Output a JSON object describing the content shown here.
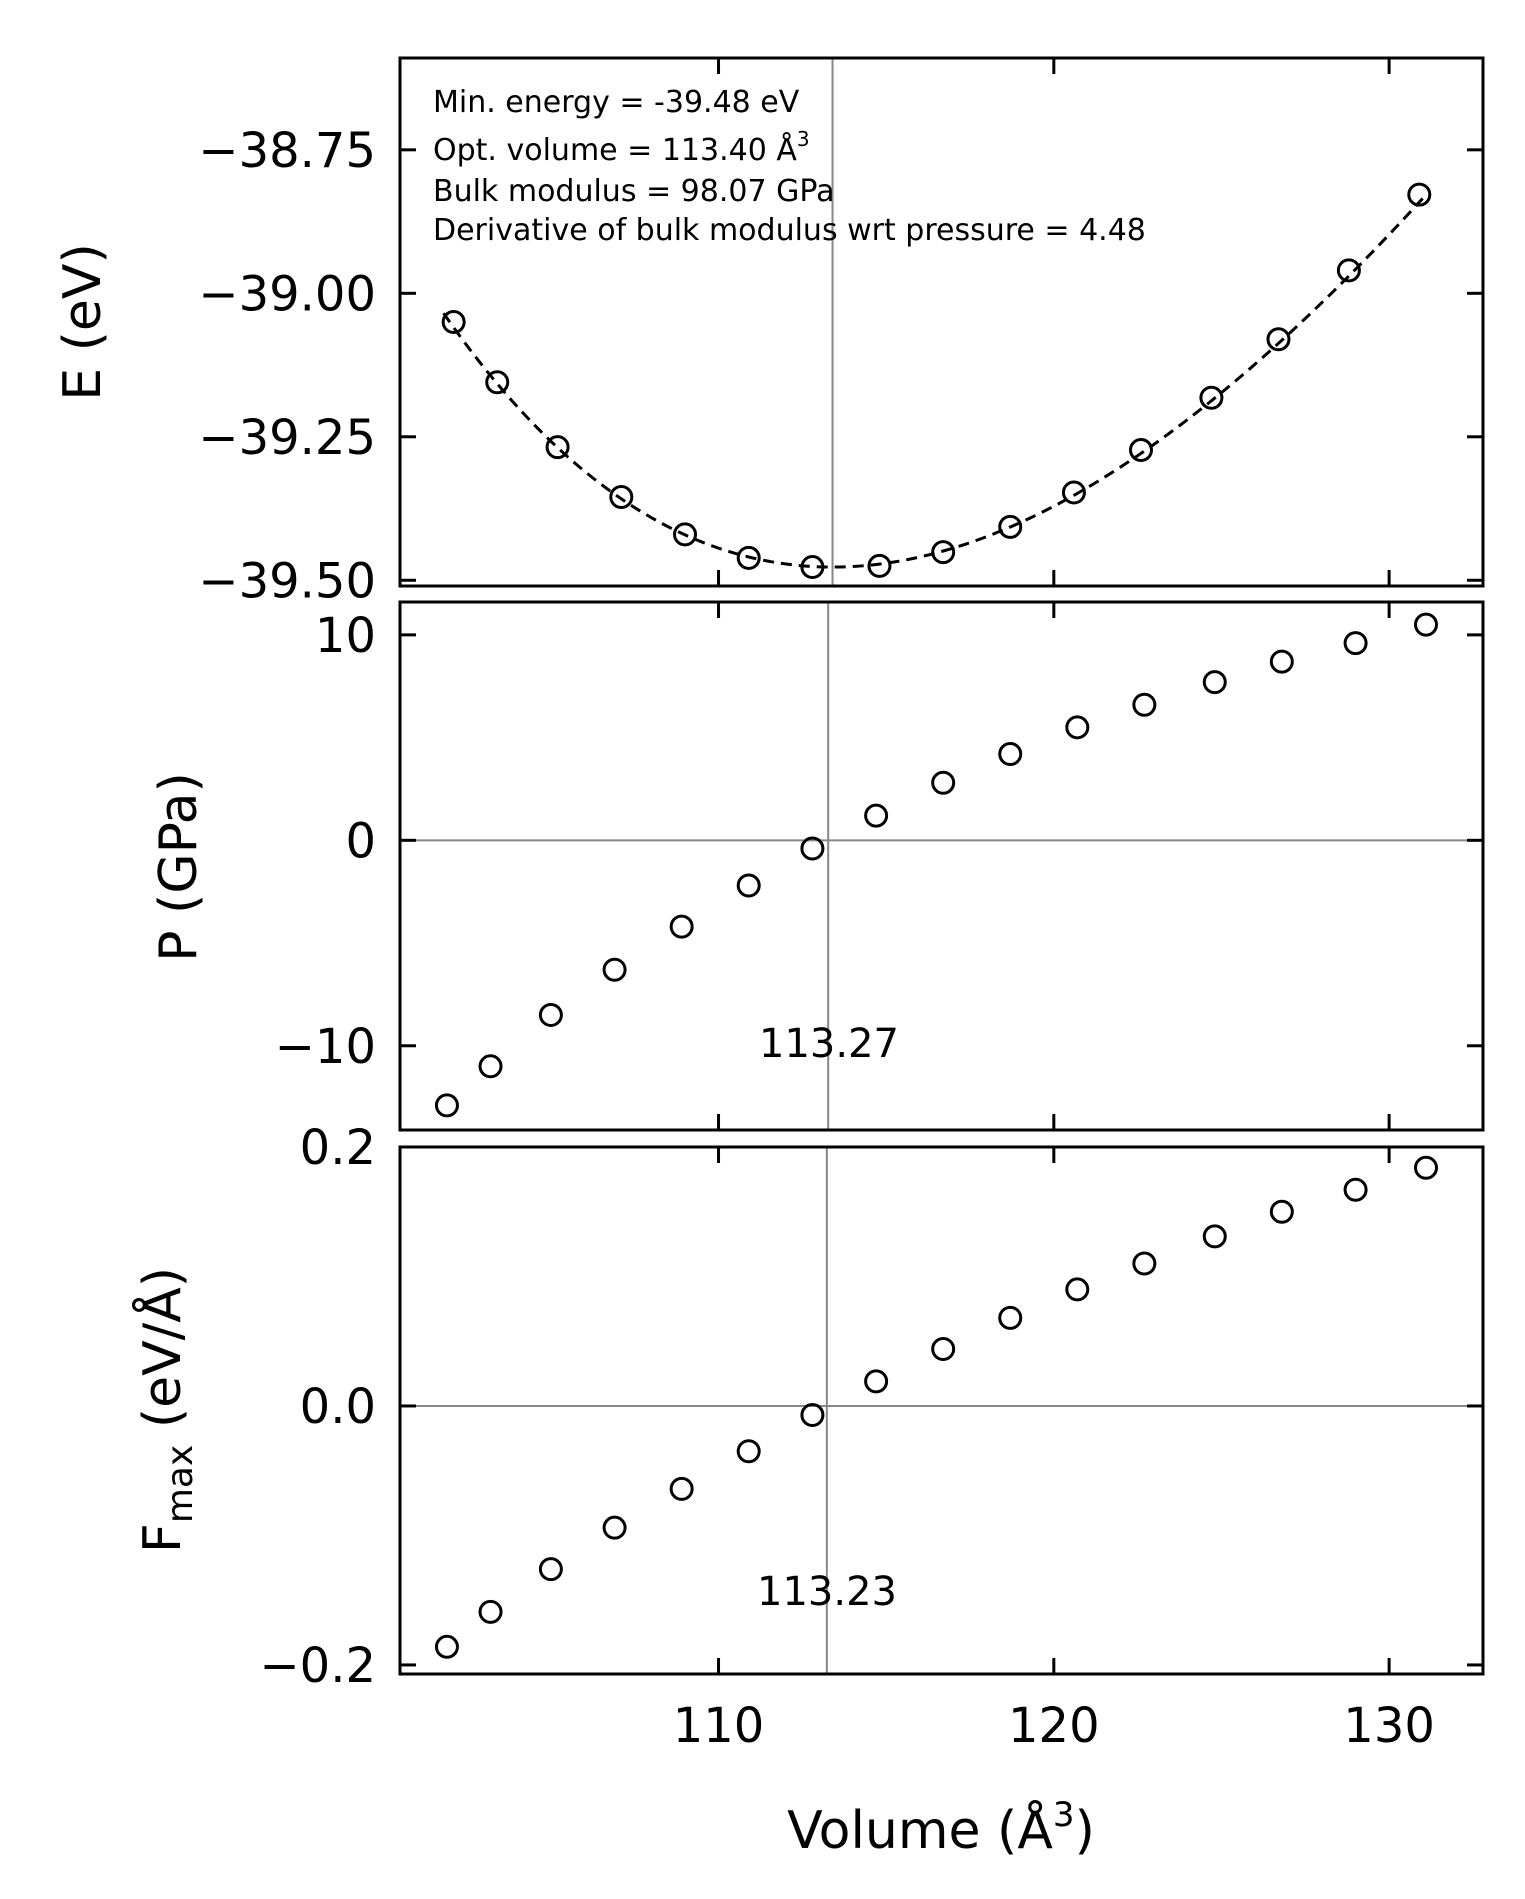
{
  "chart_data": [
    {
      "type": "line",
      "panel": "energy",
      "ylabel": "E (eV)",
      "xlim": [
        100.5,
        132.8
      ],
      "ylim": [
        -39.51,
        -38.59
      ],
      "yticks": [
        -38.75,
        -39.0,
        -39.25,
        -39.5
      ],
      "ytick_labels": [
        "−38.75",
        "−39.00",
        "−39.25",
        "−39.50"
      ],
      "xticks": [
        110,
        120,
        130
      ],
      "vertical_line": 113.4,
      "annotations": [
        "Min. energy = -39.48 eV",
        "Opt. volume = 113.40 Å",
        "Bulk modulus = 98.07 GPa",
        "Derivative of bulk modulus wrt pressure = 4.48"
      ],
      "annotation_sup": "3",
      "series": [
        {
          "name": "data",
          "style": "open-circles",
          "x": [
            102.1,
            103.4,
            105.2,
            107.1,
            109.0,
            110.9,
            112.8,
            114.8,
            116.7,
            118.7,
            120.6,
            122.6,
            124.7,
            126.7,
            128.8,
            130.9
          ],
          "y": [
            -39.05,
            -39.155,
            -39.268,
            -39.355,
            -39.42,
            -39.461,
            -39.477,
            -39.475,
            -39.451,
            -39.407,
            -39.347,
            -39.273,
            -39.182,
            -39.08,
            -38.96,
            -38.828
          ]
        },
        {
          "name": "EOS fit",
          "style": "dashed",
          "fit": {
            "E0": -39.477,
            "V0": 113.4,
            "B0_GPa": 98.07,
            "Bp": 4.48,
            "vmin": 101.8,
            "vmax": 131.0
          }
        }
      ]
    },
    {
      "type": "scatter",
      "panel": "pressure",
      "ylabel": "P (GPa)",
      "xlim": [
        100.5,
        132.8
      ],
      "ylim": [
        -14.1,
        11.6
      ],
      "yticks": [
        10,
        0,
        -10
      ],
      "ytick_labels": [
        "10",
        "0",
        "−10"
      ],
      "xticks": [
        110,
        120,
        130
      ],
      "vertical_line": 113.27,
      "vertical_line_label": "113.27",
      "zero_line": true,
      "series": [
        {
          "name": "data",
          "style": "open-circles",
          "x": [
            101.9,
            103.2,
            105.0,
            106.9,
            108.9,
            110.9,
            112.8,
            114.7,
            116.7,
            118.7,
            120.7,
            122.7,
            124.8,
            126.8,
            129.0,
            131.1
          ],
          "y": [
            -12.9,
            -11.0,
            -8.5,
            -6.3,
            -4.2,
            -2.2,
            -0.4,
            1.2,
            2.8,
            4.2,
            5.5,
            6.6,
            7.7,
            8.7,
            9.6,
            10.5
          ]
        }
      ]
    },
    {
      "type": "scatter",
      "panel": "force",
      "ylabel": "F",
      "ylabel_sub": "max",
      "ylabel_rest": " (eV/Å)",
      "xlim": [
        100.5,
        132.8
      ],
      "ylim": [
        -0.207,
        0.2
      ],
      "yticks": [
        0.2,
        0.0,
        -0.2
      ],
      "ytick_labels": [
        "0.2",
        "0.0",
        "−0.2"
      ],
      "xticks": [
        110,
        120,
        130
      ],
      "xtick_labels": [
        "110",
        "120",
        "130"
      ],
      "xlabel": "Volume (Å",
      "xlabel_sup": "3",
      "xlabel_end": ")",
      "vertical_line": 113.23,
      "vertical_line_label": "113.23",
      "zero_line": true,
      "series": [
        {
          "name": "data",
          "style": "open-circles",
          "x": [
            101.9,
            103.2,
            105.0,
            106.9,
            108.9,
            110.9,
            112.8,
            114.7,
            116.7,
            118.7,
            120.7,
            122.7,
            124.8,
            126.8,
            129.0,
            131.1
          ],
          "y": [
            -0.186,
            -0.159,
            -0.126,
            -0.094,
            -0.064,
            -0.035,
            -0.007,
            0.019,
            0.044,
            0.068,
            0.09,
            0.11,
            0.131,
            0.15,
            0.167,
            0.184
          ]
        }
      ]
    }
  ]
}
